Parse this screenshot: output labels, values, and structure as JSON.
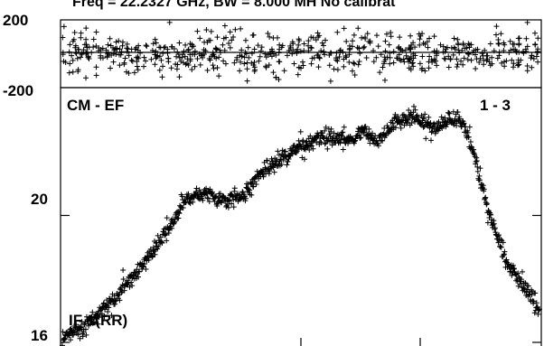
{
  "chart_data": {
    "type": "scatter",
    "title": "Freq = 22.2327 GHz, BW = 8.000 MH   No calibrat",
    "marker": "plus",
    "colors": {
      "marks": "#000000",
      "background": "#ffffff"
    },
    "panels": [
      {
        "id": "phase",
        "ylim": [
          -200,
          200
        ],
        "y_tick_labels": [
          "200",
          "-200"
        ],
        "grid": false,
        "series": [
          {
            "x_range": [
              0,
              1
            ],
            "y_centerline": 0,
            "y_scatter_core": 55,
            "y_scatter_outliers": 170,
            "point_count": 620
          }
        ]
      },
      {
        "id": "amplitude",
        "ylim": [
          15.8,
          24
        ],
        "y_tick_labels": [
          "20",
          "16"
        ],
        "y_ticks": [
          20,
          16
        ],
        "label_left": "CM - EF",
        "label_right": "1 - 3",
        "label_bottom": "IF 1(RR)",
        "grid": false,
        "series": [
          {
            "point_count": 1000,
            "x": [
              0,
              0.04,
              0.1,
              0.16,
              0.22,
              0.26,
              0.3,
              0.34,
              0.38,
              0.42,
              0.46,
              0.5,
              0.55,
              0.58,
              0.61,
              0.63,
              0.66,
              0.7,
              0.74,
              0.78,
              0.83,
              0.85,
              0.87,
              0.89,
              0.91,
              0.93,
              0.96,
              1.0
            ],
            "y": [
              16.1,
              16.45,
              17.2,
              18.3,
              19.5,
              20.55,
              20.75,
              20.5,
              20.65,
              21.4,
              21.8,
              22.15,
              22.5,
              22.45,
              22.35,
              22.7,
              22.35,
              22.95,
              23.1,
              22.75,
              23.05,
              22.6,
              21.5,
              20.3,
              19.4,
              18.6,
              17.9,
              17.0
            ]
          }
        ]
      }
    ]
  }
}
